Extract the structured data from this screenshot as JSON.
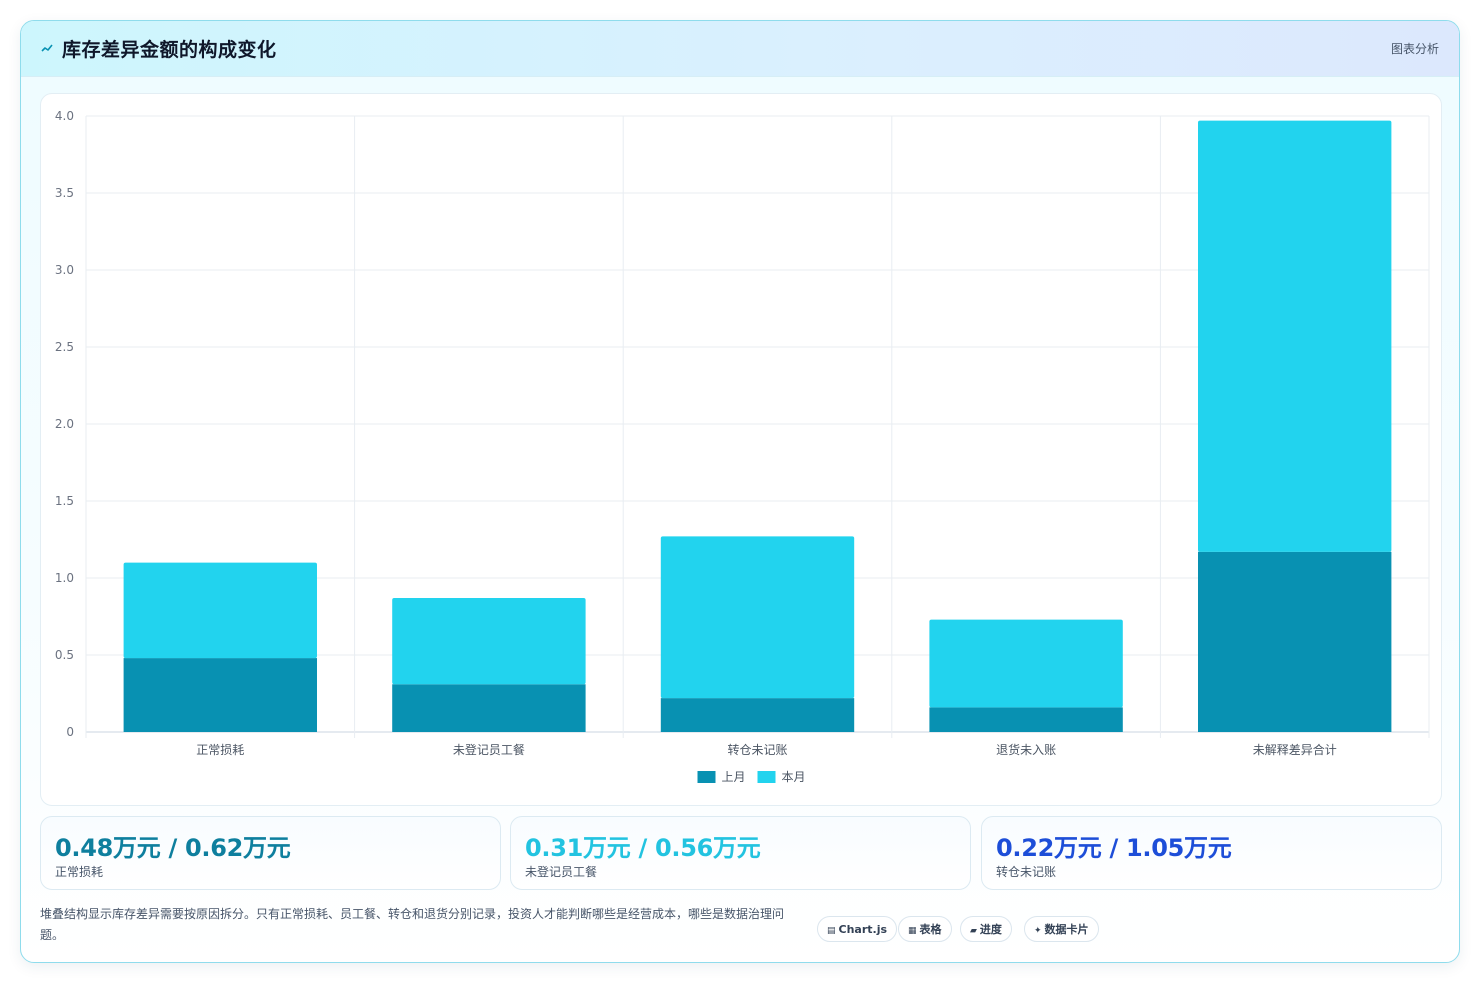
{
  "header": {
    "icon": "line-chart-icon",
    "title": "库存差异金额的构成变化",
    "link_label": "图表分析"
  },
  "chart_data": {
    "type": "bar",
    "stacked": true,
    "categories": [
      "正常损耗",
      "未登记员工餐",
      "转仓未记账",
      "退货未入账",
      "未解释差异合计"
    ],
    "series": [
      {
        "name": "上月",
        "values": [
          0.48,
          0.31,
          0.22,
          0.16,
          1.17
        ],
        "color": "#0891b2"
      },
      {
        "name": "本月",
        "values": [
          0.62,
          0.56,
          1.05,
          0.57,
          2.8
        ],
        "color": "#22d3ee"
      }
    ],
    "ylim": [
      0,
      4.0
    ],
    "yticks": [
      "0",
      "0.5",
      "1.0",
      "1.5",
      "2.0",
      "2.5",
      "3.0",
      "3.5",
      "4.0"
    ],
    "grid": true,
    "legend": "bottom-center"
  },
  "stats": [
    {
      "value": "0.48万元 / 0.62万元",
      "label": "正常损耗",
      "color": "#0e7f9e"
    },
    {
      "value": "0.31万元 / 0.56万元",
      "label": "未登记员工餐",
      "color": "#22c3e0"
    },
    {
      "value": "0.22万元 / 1.05万元",
      "label": "转仓未记账",
      "color": "#1d4ed8"
    }
  ],
  "note": "堆叠结构显示库存差异需要按原因拆分。只有正常损耗、员工餐、转仓和退货分别记录，投资人才能判断哪些是经营成本，哪些是数据治理问题。",
  "tags": [
    {
      "icon": "chart-icon",
      "glyph": "▤",
      "label": "Chart.js"
    },
    {
      "icon": "table-icon",
      "glyph": "▦",
      "label": "表格"
    },
    {
      "icon": "progress-icon",
      "glyph": "▰",
      "label": "进度"
    },
    {
      "icon": "sparkle-icon",
      "glyph": "✦",
      "label": "数据卡片"
    }
  ]
}
